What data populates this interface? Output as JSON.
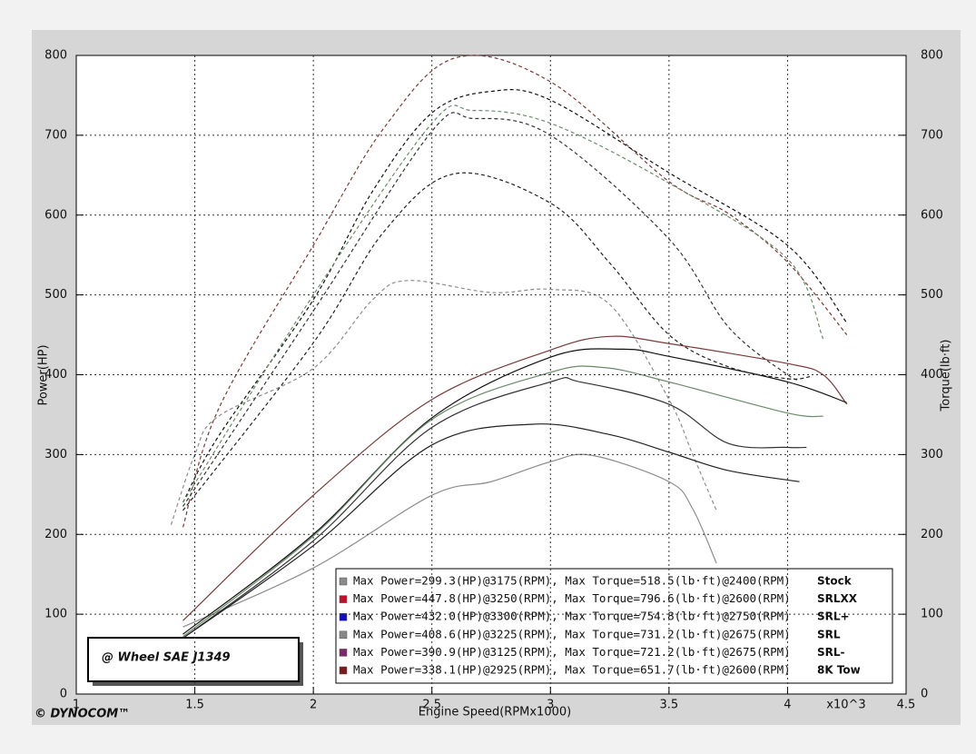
{
  "chart_data": {
    "type": "line",
    "x_label": "Engine Speed(RPMx1000)",
    "y_label": "Power(HP)",
    "y2_label": "Torque(lb·ft)",
    "x_multiplier": "x10^3",
    "annotation": "@ Wheel SAE J1349",
    "brand": "© DYNOCOM™",
    "xlim": [
      1,
      4.5
    ],
    "xticks": [
      1,
      1.5,
      2,
      2.5,
      3,
      3.5,
      4,
      4.5
    ],
    "ylim": [
      0,
      800
    ],
    "yticks": [
      0,
      100,
      200,
      300,
      400,
      500,
      600,
      700,
      800
    ],
    "y2lim": [
      0,
      800
    ],
    "y2ticks": [
      0,
      100,
      200,
      300,
      400,
      500,
      600,
      700,
      800
    ],
    "grid": true,
    "legend": "lower right",
    "series": [
      {
        "name": "Stock",
        "color": "#8a8a8a",
        "line_color": "#8c8c8c",
        "legend_text": "Max Power=299.3(HP)@3175(RPM), Max Torque=518.5(lb·ft)@2400(RPM)",
        "power": {
          "x": [
            1.45,
            2,
            2.5,
            2.75,
            3,
            3.175,
            3.5,
            3.6,
            3.7
          ],
          "values": [
            84,
            158,
            249,
            266,
            291,
            299,
            266,
            232,
            164
          ]
        },
        "torque": {
          "x": [
            1.4,
            1.5,
            1.6,
            2,
            2.25,
            2.4,
            2.75,
            3,
            3.25,
            3.5,
            3.6,
            3.7
          ],
          "values": [
            212,
            300,
            348,
            408,
            494,
            518,
            503,
            507,
            488,
            369,
            300,
            230
          ]
        }
      },
      {
        "name": "SRLXX",
        "color": "#c0102a",
        "line_color": "#7a3a3a",
        "legend_text": "Max Power=447.8(HP)@3250(RPM), Max Torque=796.6(lb·ft)@2600(RPM)",
        "power": {
          "x": [
            1.45,
            2,
            2.5,
            3,
            3.25,
            3.5,
            4,
            4.15,
            4.25
          ],
          "values": [
            92,
            249,
            369,
            431,
            448,
            439,
            414,
            400,
            363
          ]
        },
        "torque": {
          "x": [
            1.45,
            1.6,
            2,
            2.3,
            2.6,
            3,
            3.5,
            3.75,
            4,
            4.25
          ],
          "values": [
            209,
            357,
            562,
            710,
            797,
            767,
            642,
            602,
            541,
            450
          ]
        }
      },
      {
        "name": "SRL+",
        "color": "#1010c0",
        "line_color": "#111111",
        "legend_text": "Max Power=432.0(HP)@3300(RPM), Max Torque=754.8(lb·ft)@2750(RPM)",
        "power": {
          "x": [
            1.45,
            2,
            2.5,
            3,
            3.3,
            3.5,
            4,
            4.25
          ],
          "values": [
            75,
            200,
            346,
            422,
            432,
            423,
            391,
            365
          ]
        },
        "torque": {
          "x": [
            1.45,
            1.6,
            2,
            2.25,
            2.5,
            2.75,
            3,
            3.5,
            4,
            4.25
          ],
          "values": [
            240,
            323,
            494,
            630,
            728,
            755,
            744,
            653,
            562,
            465
          ]
        }
      },
      {
        "name": "SRL",
        "color": "#888888",
        "line_color": "#6a8a6a",
        "legend_text": "Max Power=408.6(HP)@3225(RPM), Max Torque=731.2(lb·ft)@2675(RPM)",
        "power": {
          "x": [
            1.45,
            2,
            2.5,
            3,
            3.225,
            3.5,
            4,
            4.15
          ],
          "values": [
            72,
            198,
            344,
            403,
            409,
            391,
            352,
            348
          ]
        },
        "torque": {
          "x": [
            1.45,
            2,
            2.5,
            2.675,
            3,
            3.5,
            4,
            4.15
          ],
          "values": [
            240,
            500,
            715,
            731,
            715,
            640,
            545,
            445
          ]
        }
      },
      {
        "name": "SRL-",
        "color": "#7a2a6a",
        "line_color": "#333333",
        "legend_text": "Max Power=390.9(HP)@3125(RPM), Max Torque=721.2(lb·ft)@2675(RPM)",
        "power": {
          "x": [
            1.45,
            2,
            2.5,
            3,
            3.125,
            3.5,
            3.75,
            4,
            4.08
          ],
          "values": [
            70,
            192,
            334,
            391,
            391,
            363,
            314,
            309,
            309
          ]
        },
        "torque": {
          "x": [
            1.45,
            2,
            2.5,
            2.675,
            3,
            3.5,
            3.75,
            4,
            4.05
          ],
          "values": [
            235,
            480,
            705,
            721,
            700,
            570,
            460,
            400,
            395
          ]
        }
      },
      {
        "name": "8K Tow",
        "color": "#7a1a1a",
        "line_color": "#222222",
        "legend_text": "Max Power=338.1(HP)@2925(RPM), Max Torque=651.7(lb·ft)@2600(RPM)",
        "power": {
          "x": [
            1.45,
            2,
            2.5,
            2.925,
            3.25,
            3.5,
            3.75,
            4.05
          ],
          "values": [
            70,
            186,
            312,
            338,
            325,
            303,
            280,
            266
          ]
        },
        "torque": {
          "x": [
            1.45,
            2,
            2.3,
            2.6,
            3,
            3.25,
            3.5,
            3.75,
            4,
            4.1
          ],
          "values": [
            230,
            440,
            580,
            652,
            615,
            540,
            450,
            410,
            395,
            398
          ]
        }
      }
    ]
  }
}
